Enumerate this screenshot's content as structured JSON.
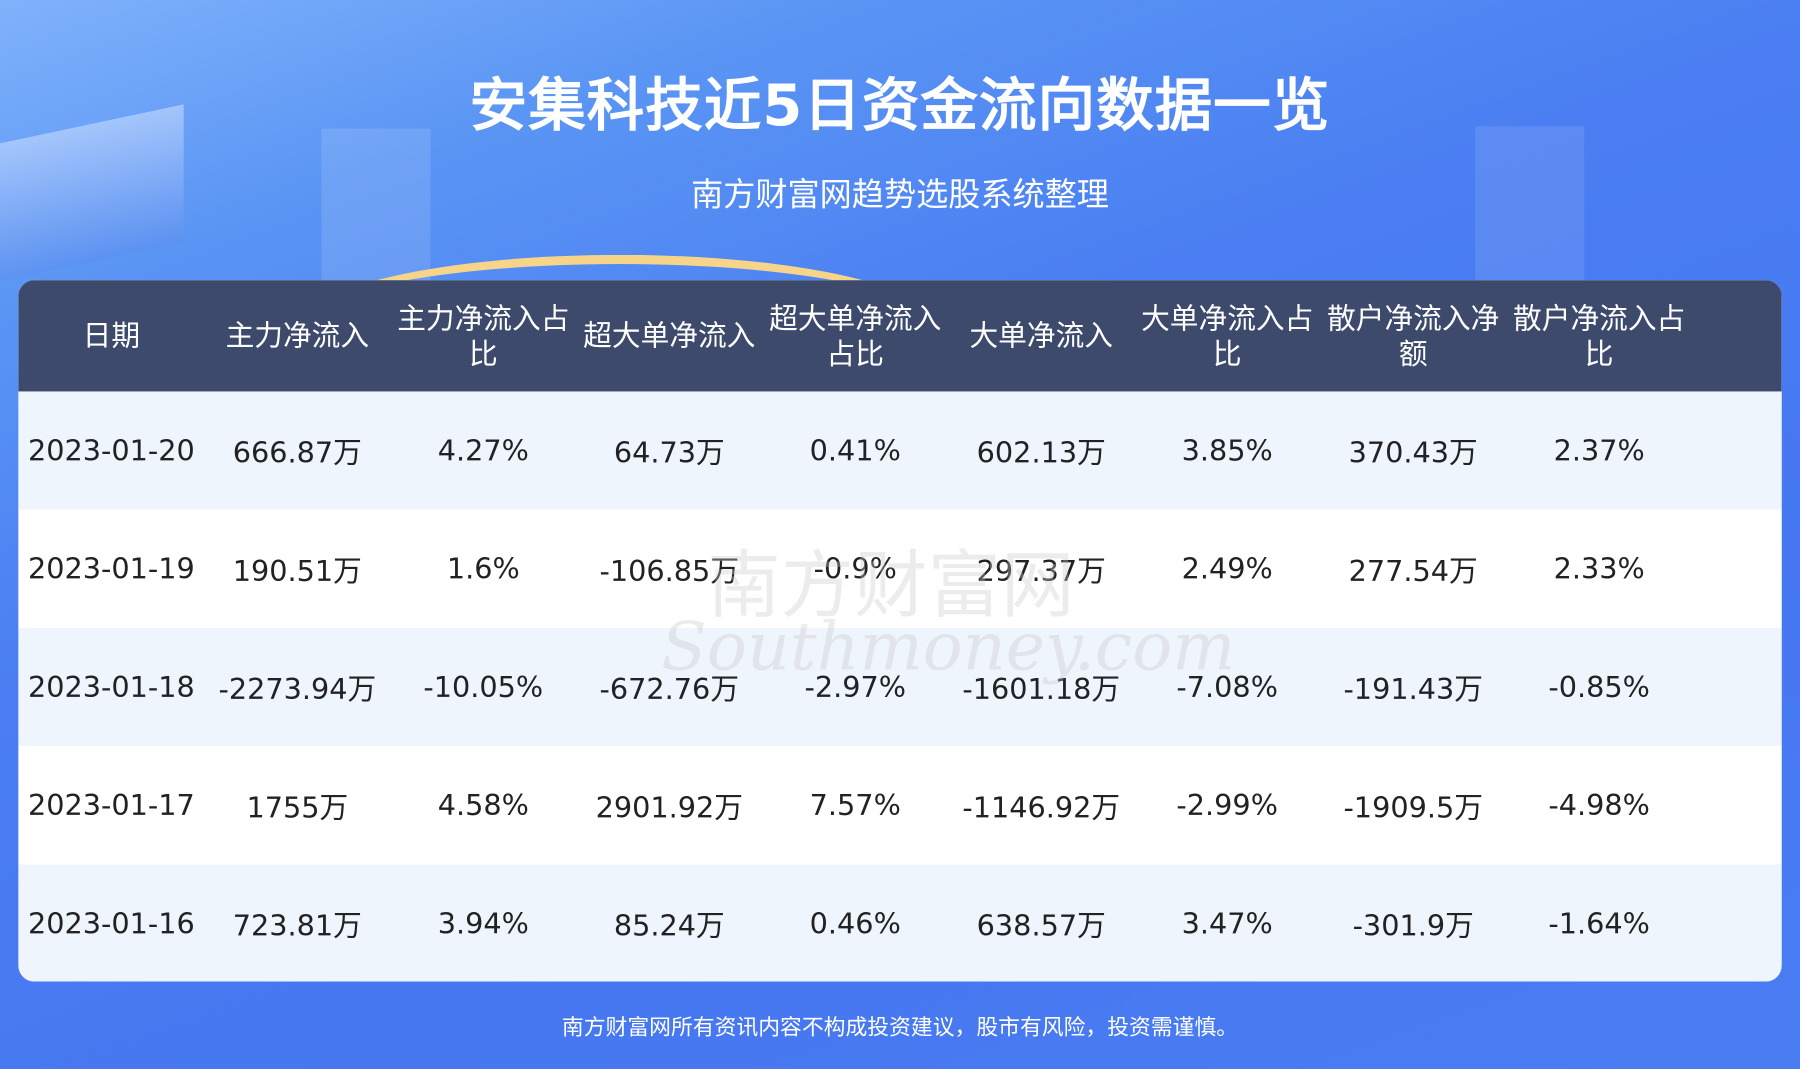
{
  "header": {
    "title": "安集科技近5日资金流向数据一览",
    "subtitle": "南方财富网趋势选股系统整理"
  },
  "table": {
    "columns": [
      "日期",
      "主力净流入",
      "主力净流入占比",
      "超大单净流入",
      "超大单净流入占比",
      "大单净流入",
      "大单净流入占比",
      "散户净流入净额",
      "散户净流入占比"
    ],
    "rows": [
      [
        "2023-01-20",
        "666.87万",
        "4.27%",
        "64.73万",
        "0.41%",
        "602.13万",
        "3.85%",
        "370.43万",
        "2.37%"
      ],
      [
        "2023-01-19",
        "190.51万",
        "1.6%",
        "-106.85万",
        "-0.9%",
        "297.37万",
        "2.49%",
        "277.54万",
        "2.33%"
      ],
      [
        "2023-01-18",
        "-2273.94万",
        "-10.05%",
        "-672.76万",
        "-2.97%",
        "-1601.18万",
        "-7.08%",
        "-191.43万",
        "-0.85%"
      ],
      [
        "2023-01-17",
        "1755万",
        "4.58%",
        "2901.92万",
        "7.57%",
        "-1146.92万",
        "-2.99%",
        "-1909.5万",
        "-4.98%"
      ],
      [
        "2023-01-16",
        "723.81万",
        "3.94%",
        "85.24万",
        "0.46%",
        "638.57万",
        "3.47%",
        "-301.9万",
        "-1.64%"
      ]
    ]
  },
  "watermark": {
    "cn": "南方财富网",
    "en": "Southmoney.com"
  },
  "footer": {
    "disclaimer": "南方财富网所有资讯内容不构成投资建议，股市有风险，投资需谨慎。"
  },
  "colors": {
    "header_bg": "#3d4a6b",
    "row_alt": "#eef5fd",
    "background": "#4677f1"
  }
}
